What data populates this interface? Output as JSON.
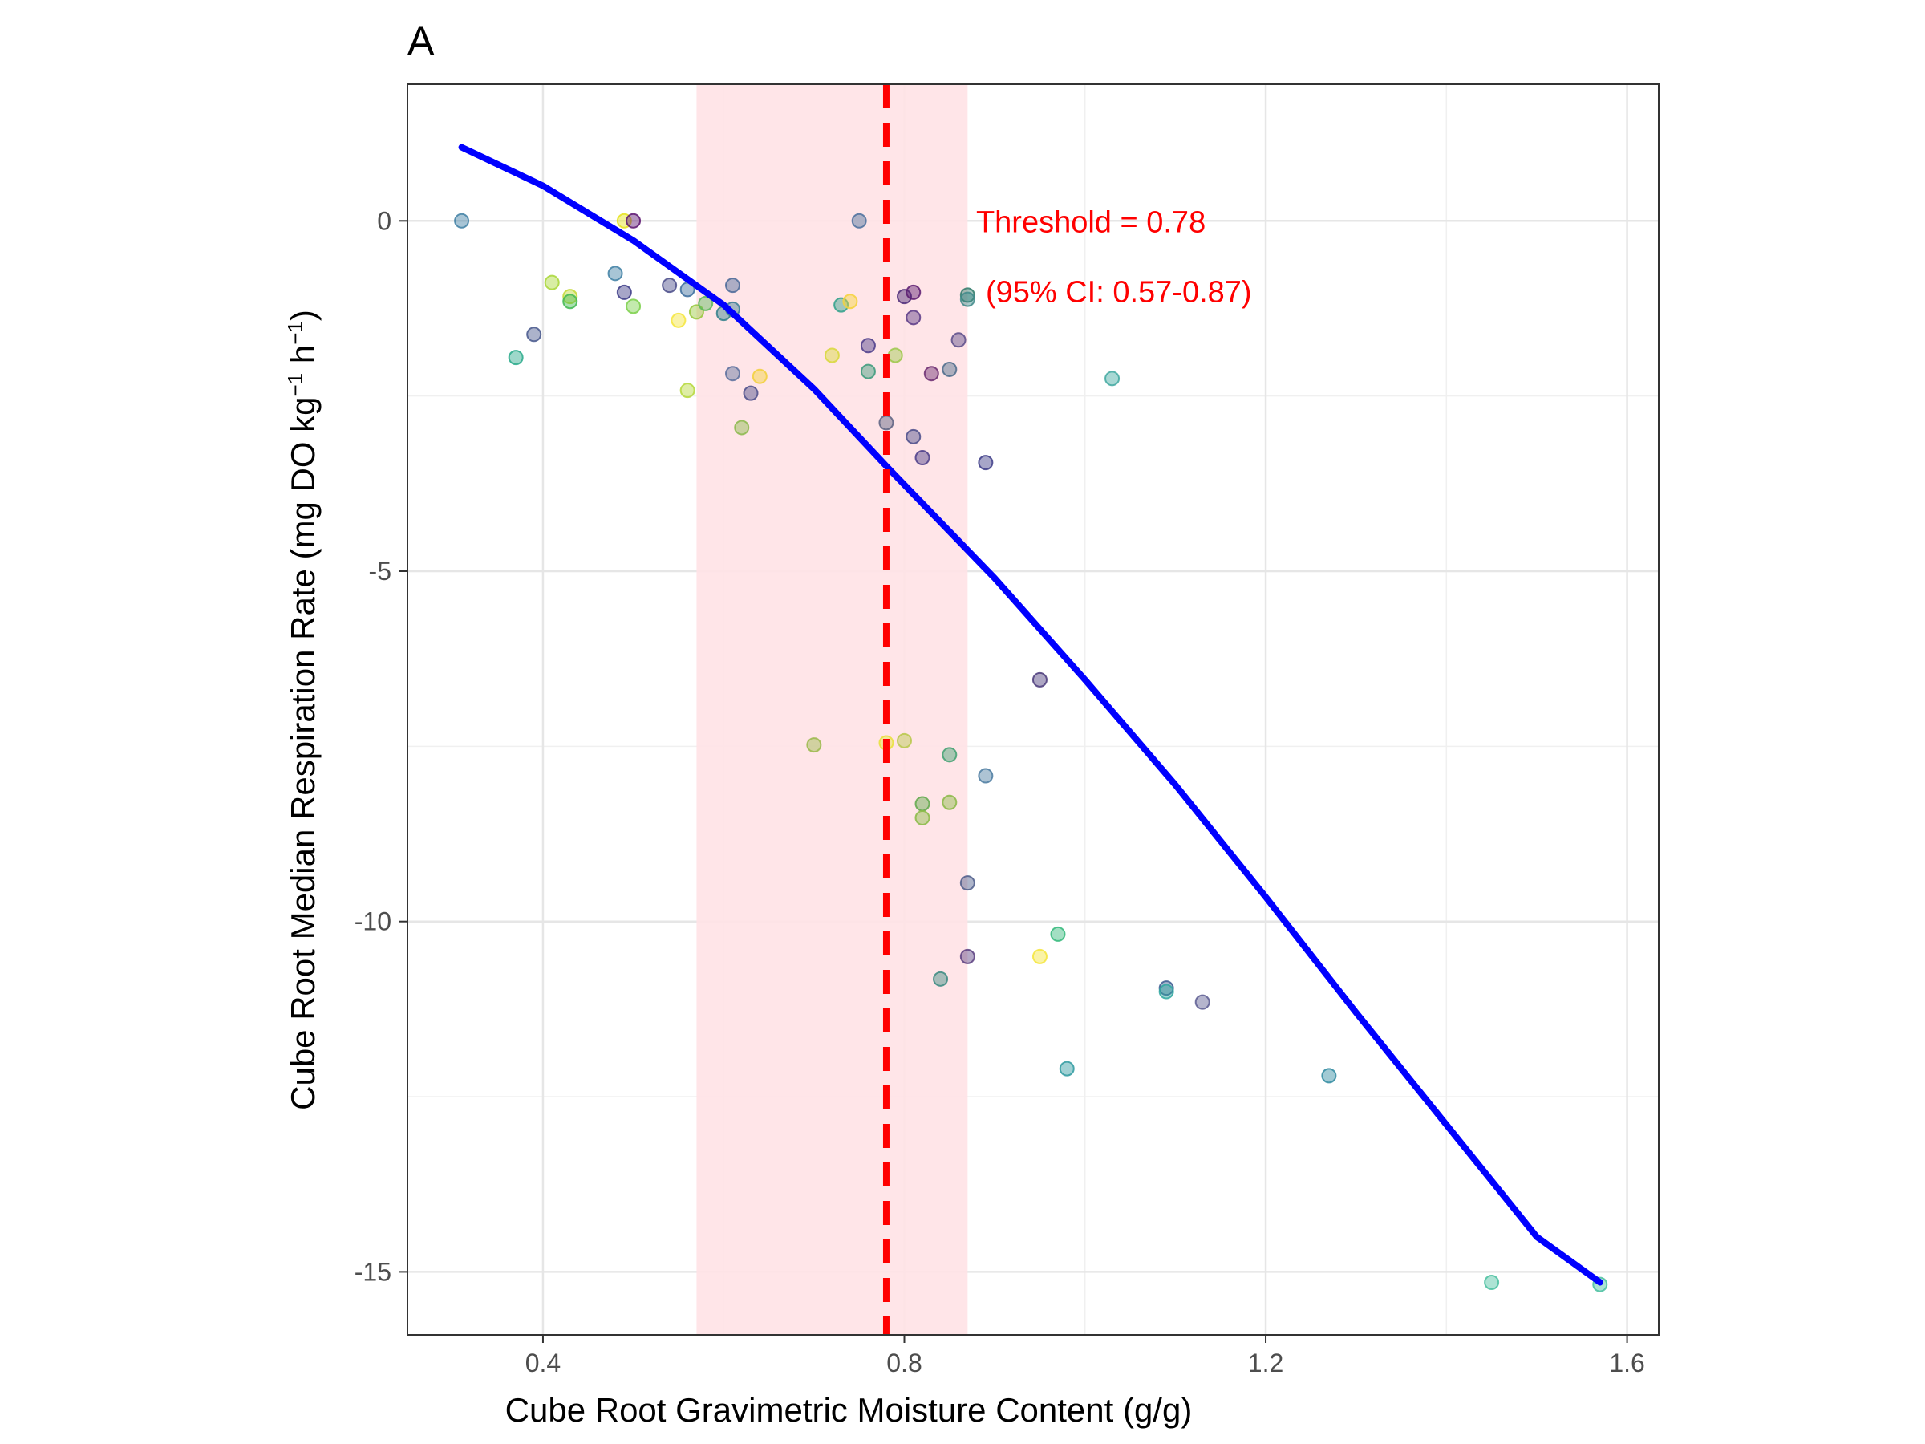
{
  "chart_data": {
    "type": "scatter",
    "panel_label": "A",
    "xlabel": "Cube Root Gravimetric Moisture Content (g/g)",
    "ylabel_main": "Cube Root Median Respiration Rate  (mg DO kg",
    "ylabel_exp1": "−1",
    "ylabel_mid": " h",
    "ylabel_exp2": "−1",
    "ylabel_end": ")",
    "xlim": [
      0.25,
      1.635
    ],
    "ylim": [
      -15.9,
      1.95
    ],
    "x_ticks": [
      0.4,
      0.8,
      1.2,
      1.6
    ],
    "x_tick_labels": [
      "0.4",
      "0.8",
      "1.2",
      "1.6"
    ],
    "y_ticks": [
      0,
      -5,
      -10,
      -15
    ],
    "y_tick_labels": [
      "0",
      "-5",
      "-10",
      "-15"
    ],
    "grid": true,
    "threshold": {
      "value": 0.78,
      "ci": [
        0.57,
        0.87
      ],
      "label": "Threshold = 0.78",
      "ci_label": "(95% CI: 0.57-0.87)",
      "line_color": "#ff0000",
      "band_color": "#ffe2e6"
    },
    "fit_line": {
      "color": "#0000ff",
      "x": [
        0.31,
        0.4,
        0.5,
        0.6,
        0.7,
        0.78,
        0.9,
        1.0,
        1.1,
        1.2,
        1.3,
        1.4,
        1.5,
        1.57
      ],
      "y": [
        1.05,
        0.5,
        -0.28,
        -1.2,
        -2.4,
        -3.5,
        -5.1,
        -6.55,
        -8.05,
        -9.65,
        -11.3,
        -12.9,
        -14.5,
        -15.15
      ]
    },
    "points": [
      {
        "x": 0.31,
        "y": 0.0,
        "c": "#3e7fa3"
      },
      {
        "x": 0.37,
        "y": -1.95,
        "c": "#27a98a"
      },
      {
        "x": 0.39,
        "y": -1.62,
        "c": "#46578c"
      },
      {
        "x": 0.41,
        "y": -0.88,
        "c": "#a8d636"
      },
      {
        "x": 0.43,
        "y": -1.08,
        "c": "#c2d835"
      },
      {
        "x": 0.43,
        "y": -1.15,
        "c": "#41b850"
      },
      {
        "x": 0.48,
        "y": -0.75,
        "c": "#3e7fa3"
      },
      {
        "x": 0.49,
        "y": -1.02,
        "c": "#3b3a86"
      },
      {
        "x": 0.49,
        "y": 0.0,
        "c": "#e5e31a"
      },
      {
        "x": 0.5,
        "y": 0.0,
        "c": "#5a1470"
      },
      {
        "x": 0.5,
        "y": -1.22,
        "c": "#7bd04a"
      },
      {
        "x": 0.54,
        "y": -0.92,
        "c": "#4a4c8a"
      },
      {
        "x": 0.55,
        "y": -1.42,
        "c": "#f4e53a"
      },
      {
        "x": 0.56,
        "y": -0.98,
        "c": "#3b6c9c"
      },
      {
        "x": 0.56,
        "y": -2.42,
        "c": "#b5d83a"
      },
      {
        "x": 0.57,
        "y": -1.3,
        "c": "#98c83c"
      },
      {
        "x": 0.58,
        "y": -1.18,
        "c": "#5cb85a"
      },
      {
        "x": 0.6,
        "y": -1.32,
        "c": "#2f7e8a"
      },
      {
        "x": 0.61,
        "y": -0.92,
        "c": "#4a6898"
      },
      {
        "x": 0.61,
        "y": -1.26,
        "c": "#3a7d93"
      },
      {
        "x": 0.61,
        "y": -2.18,
        "c": "#5a6f9c"
      },
      {
        "x": 0.62,
        "y": -2.95,
        "c": "#89b84a"
      },
      {
        "x": 0.63,
        "y": -2.46,
        "c": "#4a4c8a"
      },
      {
        "x": 0.64,
        "y": -2.22,
        "c": "#f2d03a"
      },
      {
        "x": 0.7,
        "y": -7.48,
        "c": "#9ab84a"
      },
      {
        "x": 0.72,
        "y": -1.92,
        "c": "#d8d83a"
      },
      {
        "x": 0.73,
        "y": -1.2,
        "c": "#2fa089"
      },
      {
        "x": 0.74,
        "y": -1.15,
        "c": "#f4d23a"
      },
      {
        "x": 0.75,
        "y": 0.0,
        "c": "#4a6f9c"
      },
      {
        "x": 0.76,
        "y": -1.78,
        "c": "#4c3c8a"
      },
      {
        "x": 0.76,
        "y": -2.15,
        "c": "#3a9a7a"
      },
      {
        "x": 0.78,
        "y": -2.88,
        "c": "#5a6080"
      },
      {
        "x": 0.78,
        "y": -7.45,
        "c": "#e8e23a"
      },
      {
        "x": 0.79,
        "y": -1.92,
        "c": "#9cc84a"
      },
      {
        "x": 0.8,
        "y": -1.08,
        "c": "#4c2a78"
      },
      {
        "x": 0.8,
        "y": -7.42,
        "c": "#b9c84a"
      },
      {
        "x": 0.81,
        "y": -1.02,
        "c": "#5a1a70"
      },
      {
        "x": 0.81,
        "y": -1.38,
        "c": "#5a3a86"
      },
      {
        "x": 0.81,
        "y": -3.08,
        "c": "#4a4c8a"
      },
      {
        "x": 0.82,
        "y": -3.38,
        "c": "#4a3c88"
      },
      {
        "x": 0.82,
        "y": -8.32,
        "c": "#5fa84a"
      },
      {
        "x": 0.82,
        "y": -8.52,
        "c": "#8abb45"
      },
      {
        "x": 0.83,
        "y": -2.18,
        "c": "#6a2a70"
      },
      {
        "x": 0.84,
        "y": -10.82,
        "c": "#3a8a80"
      },
      {
        "x": 0.85,
        "y": -2.12,
        "c": "#4a6a8a"
      },
      {
        "x": 0.85,
        "y": -7.62,
        "c": "#3fa070"
      },
      {
        "x": 0.85,
        "y": -8.3,
        "c": "#8ab845"
      },
      {
        "x": 0.86,
        "y": -1.7,
        "c": "#5a4c8a"
      },
      {
        "x": 0.87,
        "y": -1.06,
        "c": "#2f7a6a"
      },
      {
        "x": 0.87,
        "y": -1.12,
        "c": "#3f8a8a"
      },
      {
        "x": 0.87,
        "y": -10.5,
        "c": "#5a4080"
      },
      {
        "x": 0.87,
        "y": -9.45,
        "c": "#4c5c8a"
      },
      {
        "x": 0.89,
        "y": -3.45,
        "c": "#3b3a86"
      },
      {
        "x": 0.89,
        "y": -7.92,
        "c": "#4a7aa0"
      },
      {
        "x": 0.95,
        "y": -6.55,
        "c": "#4a3a7a"
      },
      {
        "x": 0.95,
        "y": -10.5,
        "c": "#f4e53a"
      },
      {
        "x": 0.97,
        "y": -10.18,
        "c": "#32b87a"
      },
      {
        "x": 0.98,
        "y": -12.1,
        "c": "#2f9aa0"
      },
      {
        "x": 1.03,
        "y": -2.25,
        "c": "#3fa8a0"
      },
      {
        "x": 1.09,
        "y": -10.95,
        "c": "#3a5a90"
      },
      {
        "x": 1.09,
        "y": -11.0,
        "c": "#2fa8a0"
      },
      {
        "x": 1.13,
        "y": -11.15,
        "c": "#5a5a90"
      },
      {
        "x": 1.27,
        "y": -12.2,
        "c": "#2f8aa0"
      },
      {
        "x": 1.45,
        "y": -15.15,
        "c": "#4ac0a0"
      },
      {
        "x": 1.57,
        "y": -15.18,
        "c": "#4ac0a0"
      }
    ]
  }
}
